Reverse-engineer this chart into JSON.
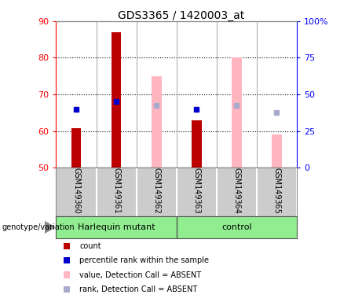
{
  "title": "GDS3365 / 1420003_at",
  "samples": [
    "GSM149360",
    "GSM149361",
    "GSM149362",
    "GSM149363",
    "GSM149364",
    "GSM149365"
  ],
  "ylim_left": [
    50,
    90
  ],
  "ylim_right": [
    0,
    100
  ],
  "yticks_left": [
    50,
    60,
    70,
    80,
    90
  ],
  "yticks_right": [
    0,
    25,
    50,
    75,
    100
  ],
  "red_bars": {
    "indices": [
      0,
      1,
      3
    ],
    "values": [
      60.8,
      87.0,
      63.0
    ]
  },
  "blue_squares": {
    "indices": [
      0,
      1,
      3
    ],
    "values": [
      66.0,
      68.0,
      66.0
    ]
  },
  "pink_bars": {
    "indices": [
      2,
      4,
      5
    ],
    "values": [
      75.0,
      80.0,
      59.0
    ]
  },
  "lightblue_squares": {
    "indices": [
      2,
      4,
      5
    ],
    "values": [
      67.0,
      67.0,
      65.0
    ]
  },
  "bar_width": 0.25,
  "red_color": "#BB0000",
  "blue_color": "#0000CC",
  "pink_color": "#FFB6C1",
  "lightblue_color": "#AAAACC",
  "label_count": "count",
  "label_percentile": "percentile rank within the sample",
  "label_value_absent": "value, Detection Call = ABSENT",
  "label_rank_absent": "rank, Detection Call = ABSENT",
  "genotype_label": "genotype/variation",
  "harlequin_label": "Harlequin mutant",
  "control_label": "control",
  "sample_bg": "#CCCCCC",
  "group_row_color": "#90EE90",
  "plot_bg": "#FFFFFF"
}
